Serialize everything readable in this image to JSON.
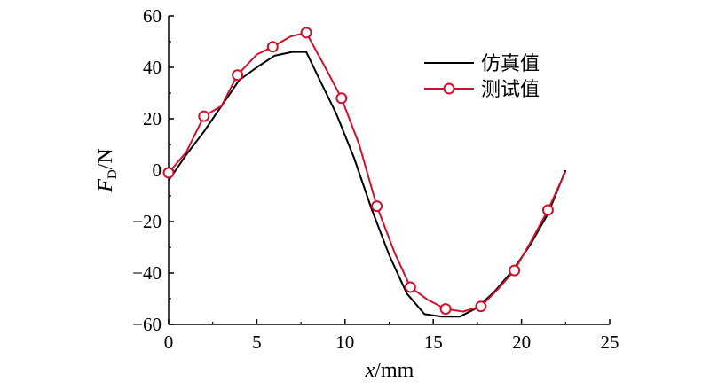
{
  "chart_data": {
    "type": "line",
    "title": "",
    "xlabel": {
      "italic": "x",
      "rest": "/mm"
    },
    "ylabel": {
      "main": "F",
      "sub": "D",
      "rest": "/N"
    },
    "xlim": [
      0,
      25
    ],
    "ylim": [
      -60,
      60
    ],
    "xticks": [
      0,
      5,
      10,
      15,
      20,
      25
    ],
    "yticks": [
      -60,
      -40,
      -20,
      0,
      20,
      40,
      60
    ],
    "xtick_labels": [
      "0",
      "5",
      "10",
      "15",
      "20",
      "25"
    ],
    "ytick_labels": [
      "−60",
      "−40",
      "−20",
      "0",
      "20",
      "40",
      "60"
    ],
    "grid": false,
    "legend": {
      "position": "top-right"
    },
    "colors": {
      "simulated": "#000000",
      "measured": "#d0112b"
    },
    "series": [
      {
        "name": "仿真值",
        "marker": "none",
        "x": [
          0,
          1,
          2,
          3,
          4,
          5,
          6,
          7,
          7.8,
          8.5,
          9.5,
          10.5,
          11.5,
          12.5,
          13.5,
          14.5,
          15.5,
          16.5,
          17.5,
          18.5,
          19.5,
          20.5,
          21.5,
          22.5
        ],
        "y": [
          -4,
          6,
          15,
          25,
          35,
          40,
          44.5,
          46,
          46,
          36,
          22,
          5,
          -15,
          -33,
          -48,
          -56,
          -57,
          -57,
          -53.5,
          -47,
          -39,
          -29,
          -17,
          0
        ]
      },
      {
        "name": "测试值",
        "marker": "circle",
        "x": [
          0,
          1,
          2,
          3,
          3.9,
          5,
          5.9,
          6.9,
          7.8,
          8.8,
          9.8,
          10.8,
          11.8,
          12.8,
          13.7,
          14.7,
          15.7,
          16.7,
          17.7,
          18.7,
          19.6,
          20.6,
          21.5,
          22.5
        ],
        "y": [
          -1,
          7,
          21,
          25,
          37,
          45,
          48,
          52,
          53.5,
          41,
          28,
          10,
          -14,
          -32,
          -45.5,
          -50.5,
          -54,
          -55,
          -53,
          -46,
          -39,
          -27,
          -15.5,
          -0.5
        ],
        "marker_indices": [
          0,
          2,
          4,
          6,
          8,
          10,
          12,
          14,
          16,
          18,
          20,
          22
        ]
      }
    ]
  }
}
